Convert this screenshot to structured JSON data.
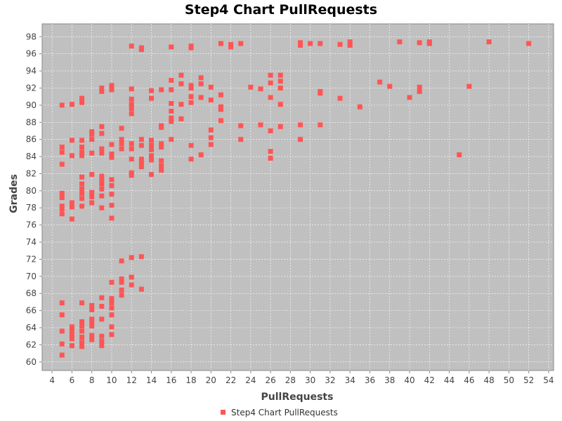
{
  "chart_data": {
    "type": "scatter",
    "title": "Step4 Chart PullRequests",
    "xlabel": "PullRequests",
    "ylabel": "Grades",
    "xlim": [
      3,
      54.5
    ],
    "ylim": [
      59,
      99.5
    ],
    "xticks": [
      4,
      6,
      8,
      10,
      12,
      14,
      16,
      18,
      20,
      22,
      24,
      26,
      28,
      30,
      32,
      34,
      36,
      38,
      40,
      42,
      44,
      46,
      48,
      50,
      52,
      54
    ],
    "yticks": [
      60,
      62,
      64,
      66,
      68,
      70,
      72,
      74,
      76,
      78,
      80,
      82,
      84,
      86,
      88,
      90,
      92,
      94,
      96,
      98
    ],
    "grid": true,
    "legend_position": "bottom",
    "colors": {
      "plot_background": "#c0c0c0",
      "grid": "#ffffff",
      "marker": "#ff5555",
      "axis": "#888888"
    },
    "series": [
      {
        "name": "Step4 Chart PullRequests",
        "points": [
          [
            5,
            60.8
          ],
          [
            5,
            62.1
          ],
          [
            5,
            63.6
          ],
          [
            5,
            65.5
          ],
          [
            5,
            66.9
          ],
          [
            5,
            77.3
          ],
          [
            5,
            77.9
          ],
          [
            5,
            78.2
          ],
          [
            5,
            79.2
          ],
          [
            5,
            79.7
          ],
          [
            5,
            83.1
          ],
          [
            5,
            84.5
          ],
          [
            5,
            85.1
          ],
          [
            5,
            90.0
          ],
          [
            6,
            61.9
          ],
          [
            6,
            62.7
          ],
          [
            6,
            63.2
          ],
          [
            6,
            63.7
          ],
          [
            6,
            64.1
          ],
          [
            6,
            76.7
          ],
          [
            6,
            78.1
          ],
          [
            6,
            78.6
          ],
          [
            6,
            84.1
          ],
          [
            6,
            85.9
          ],
          [
            6,
            90.1
          ],
          [
            7,
            61.8
          ],
          [
            7,
            62.3
          ],
          [
            7,
            62.9
          ],
          [
            7,
            63.6
          ],
          [
            7,
            64.2
          ],
          [
            7,
            64.7
          ],
          [
            7,
            66.9
          ],
          [
            7,
            78.2
          ],
          [
            7,
            79.1
          ],
          [
            7,
            79.7
          ],
          [
            7,
            80.2
          ],
          [
            7,
            80.8
          ],
          [
            7,
            81.6
          ],
          [
            7,
            84.1
          ],
          [
            7,
            84.5
          ],
          [
            7,
            85.1
          ],
          [
            7,
            85.9
          ],
          [
            7,
            90.3
          ],
          [
            7,
            90.8
          ],
          [
            8,
            62.6
          ],
          [
            8,
            63.1
          ],
          [
            8,
            64.2
          ],
          [
            8,
            64.7
          ],
          [
            8,
            65.0
          ],
          [
            8,
            66.1
          ],
          [
            8,
            66.6
          ],
          [
            8,
            78.6
          ],
          [
            8,
            79.3
          ],
          [
            8,
            79.8
          ],
          [
            8,
            81.9
          ],
          [
            8,
            84.4
          ],
          [
            8,
            86.0
          ],
          [
            8,
            86.6
          ],
          [
            8,
            86.9
          ],
          [
            9,
            61.9
          ],
          [
            9,
            62.4
          ],
          [
            9,
            63.0
          ],
          [
            9,
            65.0
          ],
          [
            9,
            66.5
          ],
          [
            9,
            67.5
          ],
          [
            9,
            78.0
          ],
          [
            9,
            79.4
          ],
          [
            9,
            80.2
          ],
          [
            9,
            80.8
          ],
          [
            9,
            81.2
          ],
          [
            9,
            81.7
          ],
          [
            9,
            84.4
          ],
          [
            9,
            84.9
          ],
          [
            9,
            86.7
          ],
          [
            9,
            87.5
          ],
          [
            9,
            91.6
          ],
          [
            9,
            92.0
          ],
          [
            10,
            63.2
          ],
          [
            10,
            64.1
          ],
          [
            10,
            65.5
          ],
          [
            10,
            66.3
          ],
          [
            10,
            66.9
          ],
          [
            10,
            67.4
          ],
          [
            10,
            69.3
          ],
          [
            10,
            76.8
          ],
          [
            10,
            78.3
          ],
          [
            10,
            79.6
          ],
          [
            10,
            80.6
          ],
          [
            10,
            81.3
          ],
          [
            10,
            83.9
          ],
          [
            10,
            84.3
          ],
          [
            10,
            85.4
          ],
          [
            10,
            91.8
          ],
          [
            10,
            92.3
          ],
          [
            11,
            67.8
          ],
          [
            11,
            68.4
          ],
          [
            11,
            69.3
          ],
          [
            11,
            69.7
          ],
          [
            11,
            71.8
          ],
          [
            11,
            84.9
          ],
          [
            11,
            85.5
          ],
          [
            11,
            86.0
          ],
          [
            11,
            87.3
          ],
          [
            12,
            69.0
          ],
          [
            12,
            69.9
          ],
          [
            12,
            72.2
          ],
          [
            12,
            81.8
          ],
          [
            12,
            82.1
          ],
          [
            12,
            83.7
          ],
          [
            12,
            84.9
          ],
          [
            12,
            85.5
          ],
          [
            12,
            89.0
          ],
          [
            12,
            89.6
          ],
          [
            12,
            90.1
          ],
          [
            12,
            90.7
          ],
          [
            12,
            91.9
          ],
          [
            12,
            96.9
          ],
          [
            13,
            68.5
          ],
          [
            13,
            72.3
          ],
          [
            13,
            82.8
          ],
          [
            13,
            83.3
          ],
          [
            13,
            83.7
          ],
          [
            13,
            85.3
          ],
          [
            13,
            86.0
          ],
          [
            13,
            96.5
          ],
          [
            13,
            96.7
          ],
          [
            14,
            81.9
          ],
          [
            14,
            83.6
          ],
          [
            14,
            84.1
          ],
          [
            14,
            84.8
          ],
          [
            14,
            85.3
          ],
          [
            14,
            85.9
          ],
          [
            14,
            90.8
          ],
          [
            14,
            91.7
          ],
          [
            15,
            82.4
          ],
          [
            15,
            82.9
          ],
          [
            15,
            83.5
          ],
          [
            15,
            85.1
          ],
          [
            15,
            85.5
          ],
          [
            15,
            87.4
          ],
          [
            15,
            87.6
          ],
          [
            15,
            91.8
          ],
          [
            16,
            86.0
          ],
          [
            16,
            88.1
          ],
          [
            16,
            88.5
          ],
          [
            16,
            89.3
          ],
          [
            16,
            90.2
          ],
          [
            16,
            91.8
          ],
          [
            16,
            92.9
          ],
          [
            16,
            96.8
          ],
          [
            17,
            88.4
          ],
          [
            17,
            90.1
          ],
          [
            17,
            92.5
          ],
          [
            17,
            93.5
          ],
          [
            18,
            83.7
          ],
          [
            18,
            85.3
          ],
          [
            18,
            90.3
          ],
          [
            18,
            91.0
          ],
          [
            18,
            92.0
          ],
          [
            18,
            92.3
          ],
          [
            18,
            96.7
          ],
          [
            18,
            96.9
          ],
          [
            19,
            84.2
          ],
          [
            19,
            90.9
          ],
          [
            19,
            92.5
          ],
          [
            19,
            93.2
          ],
          [
            20,
            85.4
          ],
          [
            20,
            86.2
          ],
          [
            20,
            87.1
          ],
          [
            20,
            90.6
          ],
          [
            20,
            92.1
          ],
          [
            21,
            88.2
          ],
          [
            21,
            89.5
          ],
          [
            21,
            89.8
          ],
          [
            21,
            91.2
          ],
          [
            21,
            97.2
          ],
          [
            22,
            96.8
          ],
          [
            22,
            97.1
          ],
          [
            23,
            86.0
          ],
          [
            23,
            87.6
          ],
          [
            23,
            97.2
          ],
          [
            24,
            92.1
          ],
          [
            25,
            87.7
          ],
          [
            25,
            91.9
          ],
          [
            26,
            83.8
          ],
          [
            26,
            84.6
          ],
          [
            26,
            87.0
          ],
          [
            26,
            90.9
          ],
          [
            26,
            92.6
          ],
          [
            26,
            93.5
          ],
          [
            27,
            87.5
          ],
          [
            27,
            90.1
          ],
          [
            27,
            92.0
          ],
          [
            27,
            92.8
          ],
          [
            27,
            93.5
          ],
          [
            29,
            86.0
          ],
          [
            29,
            87.7
          ],
          [
            29,
            97.0
          ],
          [
            29,
            97.3
          ],
          [
            30,
            97.2
          ],
          [
            31,
            87.7
          ],
          [
            31,
            91.4
          ],
          [
            31,
            91.6
          ],
          [
            31,
            97.2
          ],
          [
            33,
            90.8
          ],
          [
            33,
            97.1
          ],
          [
            34,
            97.0
          ],
          [
            34,
            97.4
          ],
          [
            35,
            89.8
          ],
          [
            37,
            92.7
          ],
          [
            38,
            92.2
          ],
          [
            39,
            97.4
          ],
          [
            40,
            90.9
          ],
          [
            41,
            91.6
          ],
          [
            41,
            92.1
          ],
          [
            41,
            97.3
          ],
          [
            42,
            97.2
          ],
          [
            42,
            97.4
          ],
          [
            45,
            84.2
          ],
          [
            46,
            92.2
          ],
          [
            48,
            97.4
          ],
          [
            52,
            97.2
          ]
        ]
      }
    ]
  }
}
